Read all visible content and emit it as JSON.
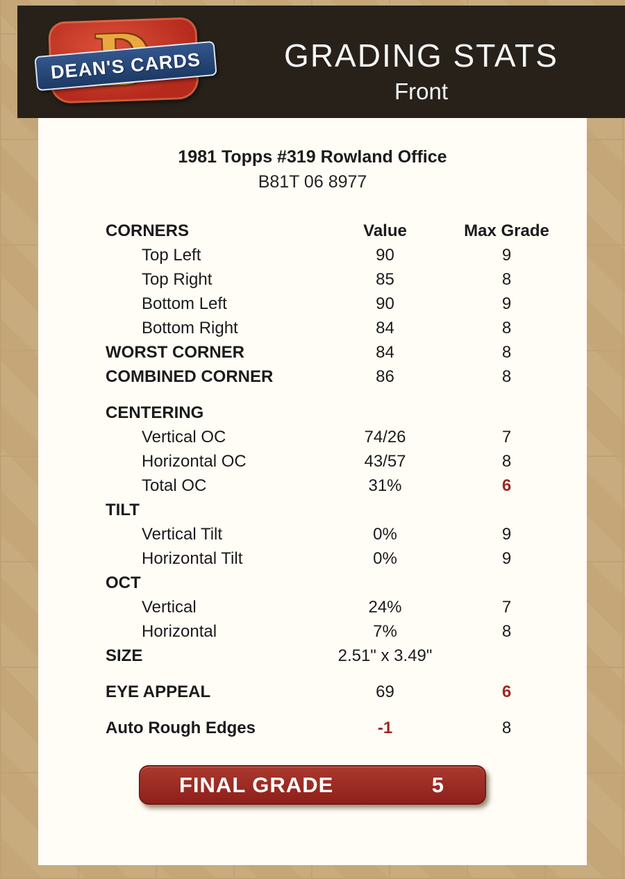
{
  "colors": {
    "accent_red": "#9c2a23",
    "header_bg": "#27211a",
    "page_bg": "#c6a87a",
    "panel_bg": "#fffdf6",
    "logo_red": "#b62a1e",
    "logo_blue": "#1d3a66",
    "logo_gold": "#e9a93f"
  },
  "header": {
    "title": "GRADING STATS",
    "subtitle": "Front",
    "logo_text": "DEAN'S CARDS",
    "logo_letter": "D"
  },
  "card": {
    "title": "1981 Topps #319 Rowland Office",
    "serial": "B81T 06 8977"
  },
  "table": {
    "rows": [
      {
        "label": "CORNERS",
        "value": "Value",
        "max": "Max Grade",
        "header": true
      },
      {
        "label": "Top Left",
        "value": "90",
        "max": "9",
        "indent": true
      },
      {
        "label": "Top Right",
        "value": "85",
        "max": "8",
        "indent": true
      },
      {
        "label": "Bottom Left",
        "value": "90",
        "max": "9",
        "indent": true
      },
      {
        "label": "Bottom Right",
        "value": "84",
        "max": "8",
        "indent": true
      },
      {
        "label": "WORST CORNER",
        "value": "84",
        "max": "8",
        "bold": true
      },
      {
        "label": "COMBINED CORNER",
        "value": "86",
        "max": "8",
        "bold": true
      },
      {
        "spacer": true
      },
      {
        "label": "CENTERING",
        "bold": true
      },
      {
        "label": "Vertical OC",
        "value": "74/26",
        "max": "7",
        "indent": true
      },
      {
        "label": "Horizontal OC",
        "value": "43/57",
        "max": "8",
        "indent": true
      },
      {
        "label": "Total OC",
        "value": "31%",
        "max": "6",
        "indent": true,
        "max_red": true
      },
      {
        "label": "TILT",
        "bold": true
      },
      {
        "label": "Vertical Tilt",
        "value": "0%",
        "max": "9",
        "indent": true
      },
      {
        "label": "Horizontal Tilt",
        "value": "0%",
        "max": "9",
        "indent": true
      },
      {
        "label": "OCT",
        "bold": true
      },
      {
        "label": "Vertical",
        "value": "24%",
        "max": "7",
        "indent": true
      },
      {
        "label": "Horizontal",
        "value": "7%",
        "max": "8",
        "indent": true
      },
      {
        "label": "SIZE",
        "value": "2.51\" x 3.49\"",
        "bold": true
      },
      {
        "spacer": true
      },
      {
        "label": "EYE APPEAL",
        "value": "69",
        "max": "6",
        "bold": true,
        "max_red": true
      },
      {
        "spacer": true
      },
      {
        "label": "Auto Rough Edges",
        "value": "-1",
        "max": "8",
        "bold": true,
        "value_red": true
      }
    ]
  },
  "final_grade": {
    "label": "FINAL GRADE",
    "value": "5"
  }
}
